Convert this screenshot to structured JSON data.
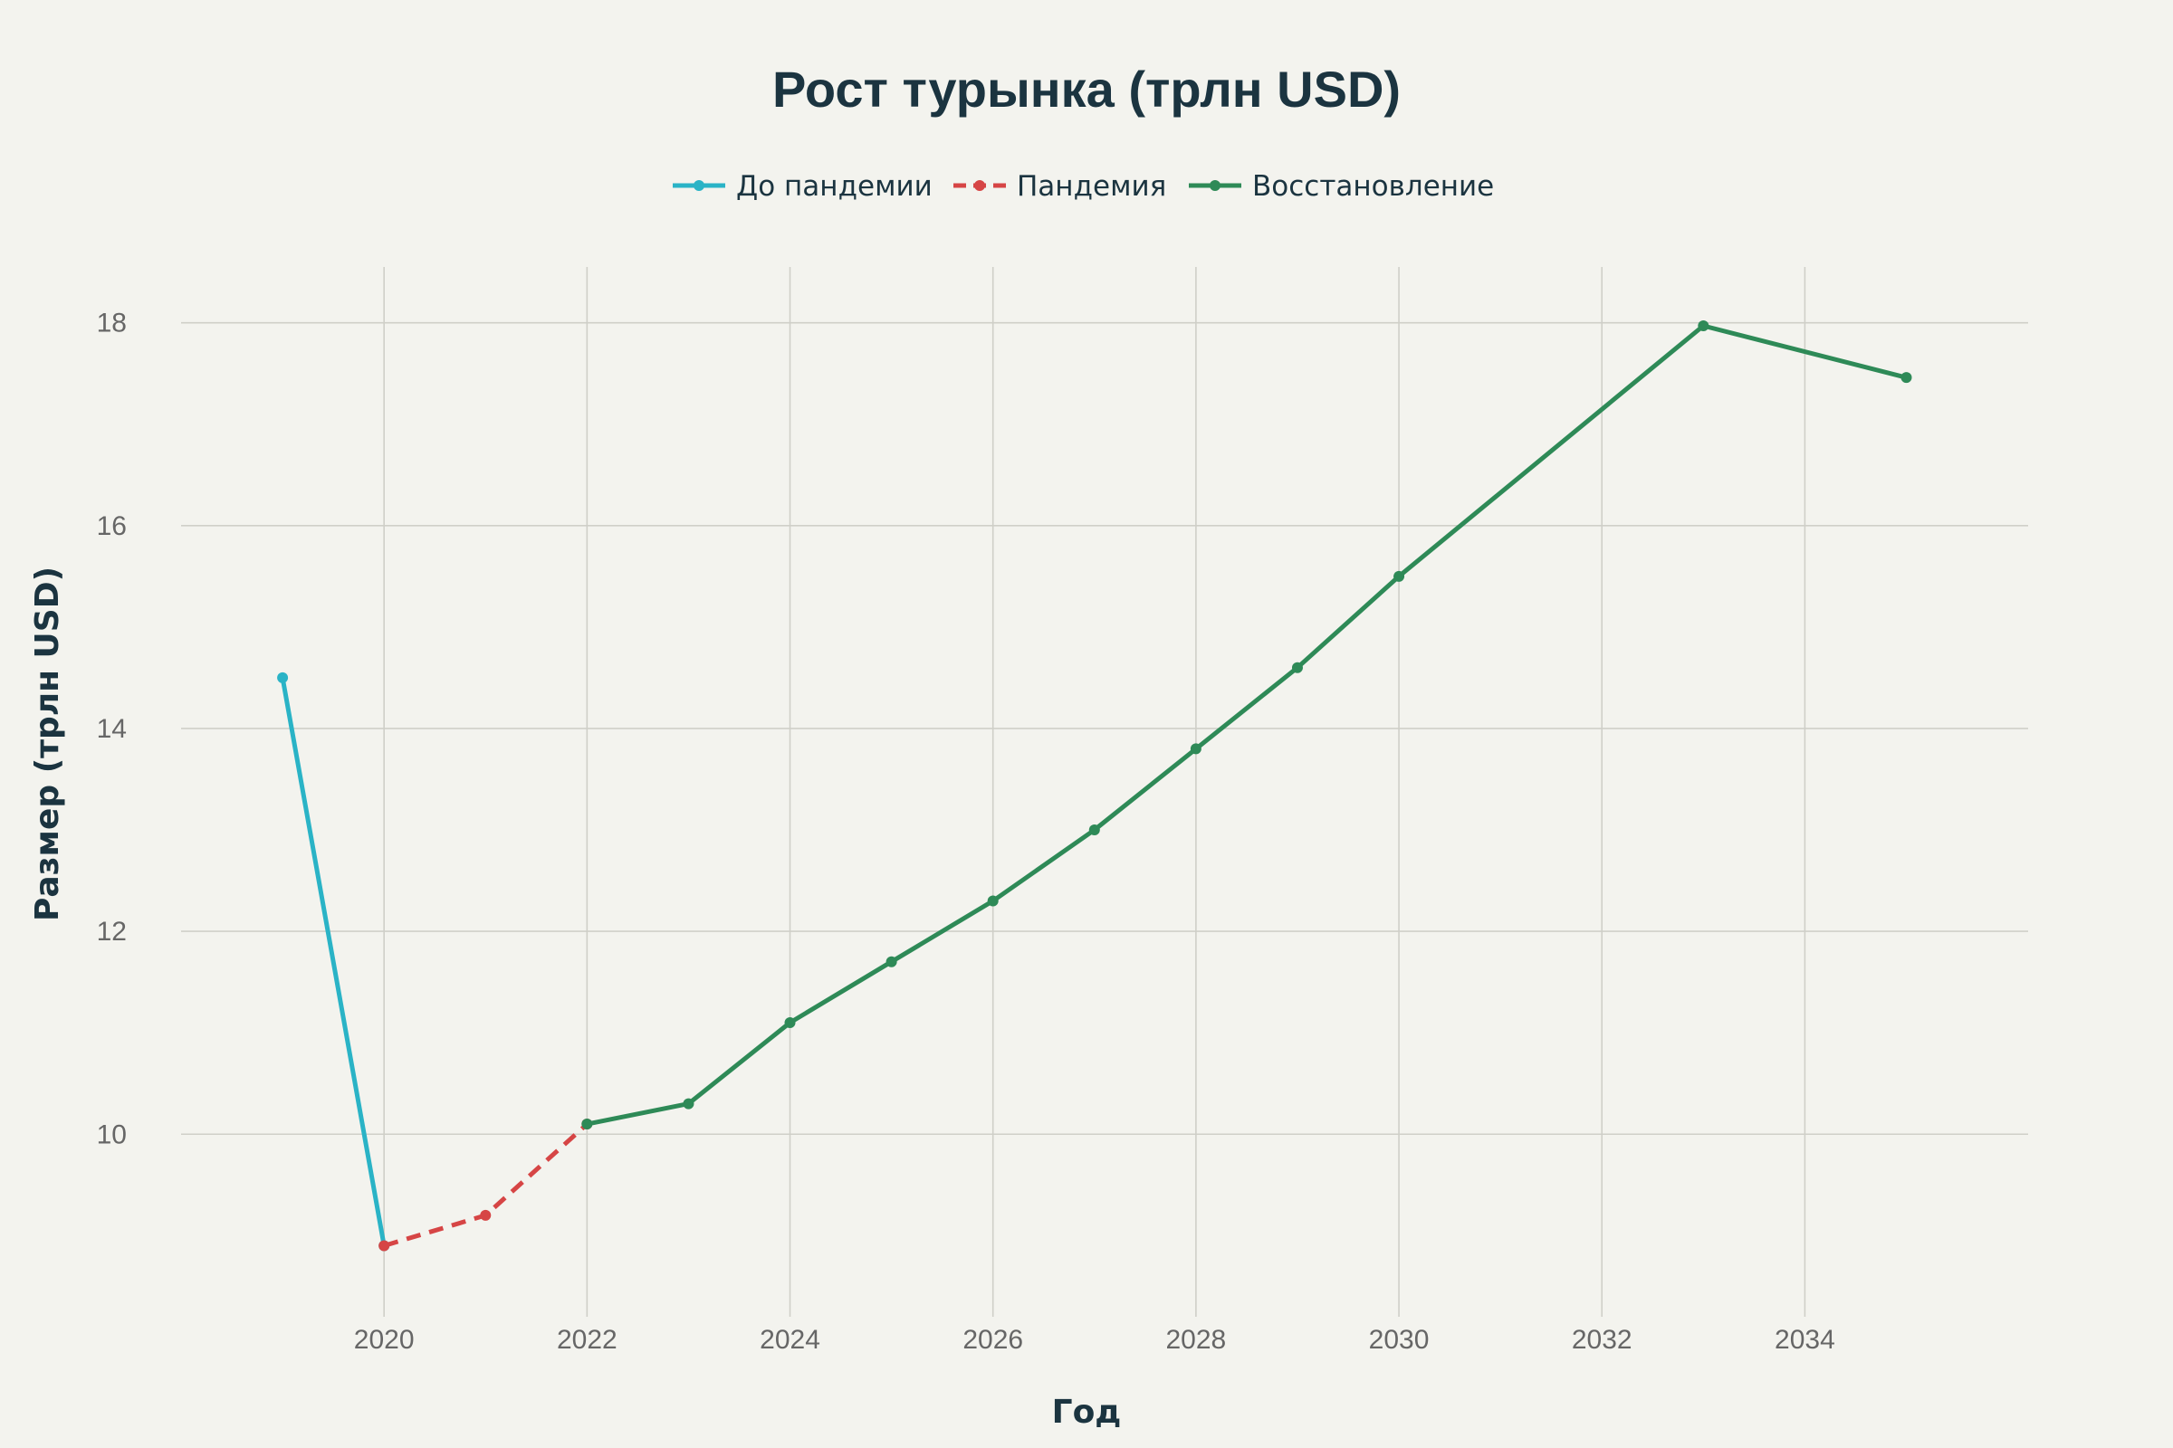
{
  "chart_data": {
    "type": "line",
    "title": "Рост турынка (трлн USD)",
    "xlabel": "Год",
    "ylabel": "Размер (трлн USD)",
    "xlim": [
      2018,
      2036.2
    ],
    "ylim": [
      8.2,
      18.55
    ],
    "xticks": [
      2020,
      2022,
      2024,
      2026,
      2028,
      2030,
      2032,
      2034
    ],
    "yticks": [
      10,
      12,
      14,
      16,
      18
    ],
    "grid": true,
    "legend_position": "top-center",
    "series": [
      {
        "name": "До пандемии",
        "color": "#2ab3c6",
        "dash": "solid",
        "x": [
          2019,
          2020
        ],
        "y": [
          14.5,
          8.9
        ]
      },
      {
        "name": "Пандемия",
        "color": "#d64545",
        "dash": "dashed",
        "x": [
          2020,
          2021,
          2022
        ],
        "y": [
          8.9,
          9.2,
          10.1
        ]
      },
      {
        "name": "Восстановление",
        "color": "#2e8a57",
        "dash": "solid",
        "x": [
          2022,
          2023,
          2024,
          2025,
          2026,
          2027,
          2028,
          2029,
          2030,
          2033,
          2035
        ],
        "y": [
          10.1,
          10.3,
          11.1,
          11.7,
          12.3,
          13.0,
          13.8,
          14.6,
          15.5,
          17.97,
          17.46
        ]
      }
    ]
  }
}
